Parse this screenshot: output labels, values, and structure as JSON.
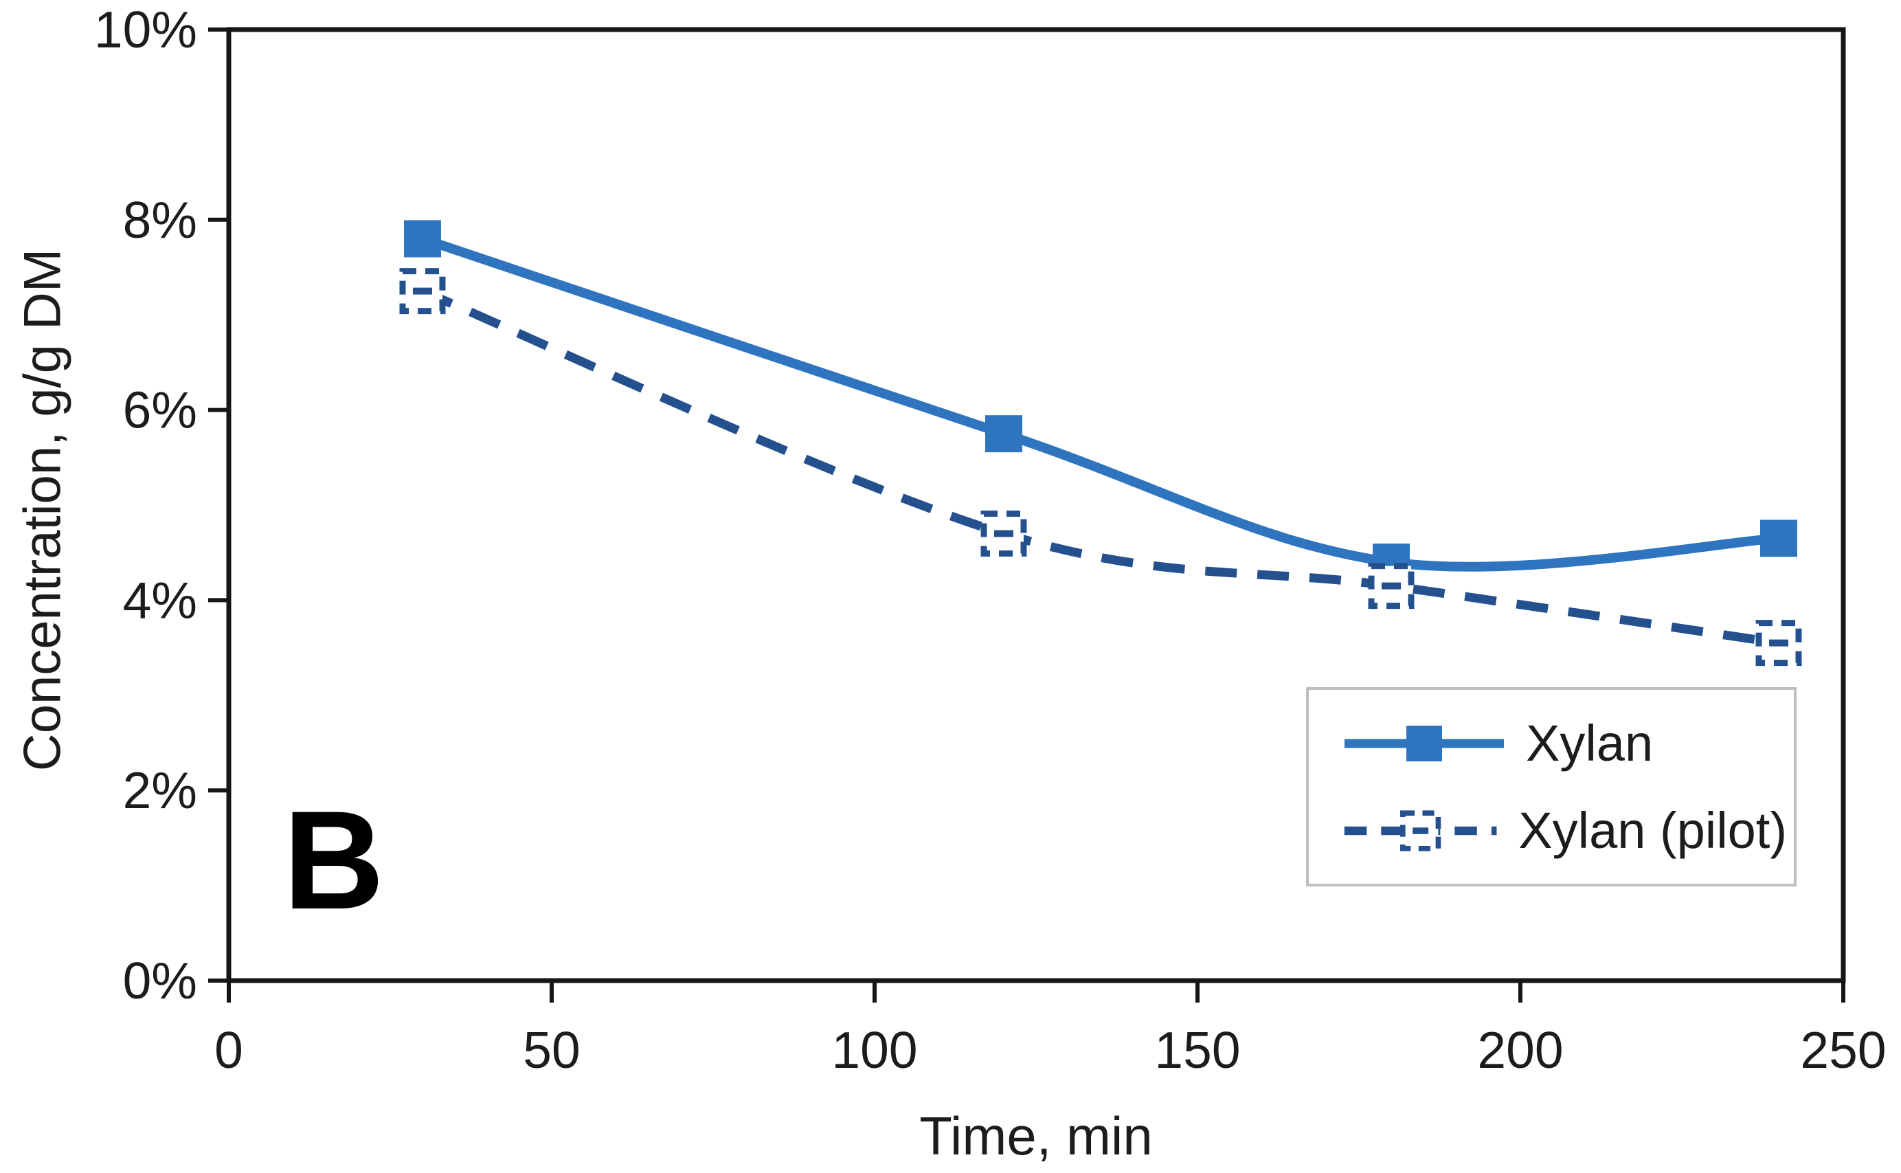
{
  "figure": {
    "panel_label": "B"
  },
  "chart_data": {
    "type": "line",
    "title": "",
    "xlabel": "Time, min",
    "ylabel": "Concentration, g/g DM",
    "xlim": [
      0,
      250
    ],
    "ylim_percent": [
      0,
      10
    ],
    "xticks": [
      0,
      50,
      100,
      150,
      200,
      250
    ],
    "yticks_percent": [
      0,
      2,
      4,
      6,
      8,
      10
    ],
    "ytick_labels": [
      "0%",
      "2%",
      "4%",
      "6%",
      "8%",
      "10%"
    ],
    "grid": false,
    "legend_position": "inside-bottom-right",
    "x": [
      30,
      120,
      180,
      240
    ],
    "series": [
      {
        "name": "Xylan",
        "values_percent": [
          7.8,
          5.75,
          4.4,
          4.65
        ],
        "color": "#2E74BE",
        "line_style": "solid",
        "marker": "filled-square"
      },
      {
        "name": "Xylan (pilot)",
        "values_percent": [
          7.25,
          4.7,
          4.15,
          3.55
        ],
        "color": "#24518E",
        "line_style": "dashed",
        "marker": "open-square-dashed"
      }
    ],
    "axis_color": "#161616",
    "text_color": "#1c1c1c"
  }
}
